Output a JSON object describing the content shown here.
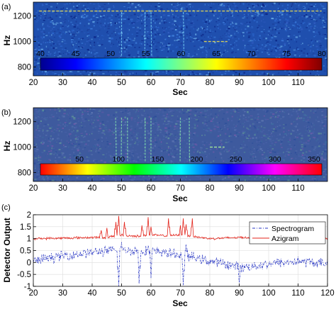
{
  "figure": {
    "panels": [
      "(a)",
      "(b)",
      "(c)"
    ]
  },
  "chart_data": [
    {
      "type": "heatmap",
      "panel_label": "(a)",
      "xlabel": "Sec",
      "ylabel": "Hz",
      "xlim": [
        20,
        120
      ],
      "ylim": [
        730,
        1310
      ],
      "x_ticks": [
        20,
        30,
        40,
        50,
        60,
        70,
        80,
        90,
        100,
        110
      ],
      "y_ticks": [
        800,
        1000,
        1200
      ],
      "colorbar": {
        "colormap": "jet",
        "range": [
          40,
          80
        ],
        "ticks": [
          40,
          45,
          50,
          55,
          60,
          65,
          70,
          75,
          80
        ],
        "tick_color": "#f2e23c"
      },
      "background_color": "#1f4fae",
      "vertical_features_sec": [
        50,
        58,
        60,
        71
      ],
      "horizontal_features": [
        {
          "hz": 1240,
          "from_sec": 22,
          "to_sec": 118
        },
        {
          "hz": 1000,
          "from_sec": 78,
          "to_sec": 86
        }
      ]
    },
    {
      "type": "heatmap",
      "panel_label": "(b)",
      "xlabel": "Sec",
      "ylabel": "Hz",
      "xlim": [
        20,
        120
      ],
      "ylim": [
        730,
        1310
      ],
      "x_ticks": [
        20,
        30,
        40,
        50,
        60,
        70,
        80,
        90,
        100,
        110
      ],
      "y_ticks": [
        800,
        1000,
        1200
      ],
      "colorbar": {
        "colormap": "hsv",
        "range": [
          0,
          360
        ],
        "ticks": [
          50,
          100,
          150,
          200,
          250,
          300,
          350
        ],
        "tick_color": "#000000"
      },
      "background_color": "#3e5a9e",
      "vertical_features_sec": [
        48,
        50,
        52,
        58,
        60,
        70,
        73
      ],
      "horizontal_features": [
        {
          "hz": 1000,
          "from_sec": 80,
          "to_sec": 85
        }
      ]
    },
    {
      "type": "line",
      "panel_label": "(c)",
      "xlabel": "Sec",
      "ylabel": "Detector Output",
      "xlim": [
        20,
        120
      ],
      "ylim": [
        -1,
        2
      ],
      "x_ticks": [
        20,
        30,
        40,
        50,
        60,
        70,
        80,
        90,
        100,
        110,
        120
      ],
      "y_ticks": [
        -1,
        -0.5,
        0,
        0.5,
        1,
        1.5,
        2
      ],
      "y_tick_labels": [
        "-1",
        "-0.5",
        "0",
        "0.5",
        "1",
        "1.5",
        "2"
      ],
      "legend_position": "top-right",
      "series": [
        {
          "name": "Spectrogram",
          "color": "#2b39c4",
          "style": "dash-dot",
          "baseline": [
            [
              20,
              0.05
            ],
            [
              28,
              0.25
            ],
            [
              35,
              0.35
            ],
            [
              42,
              0.45
            ],
            [
              48,
              0.5
            ],
            [
              55,
              0.5
            ],
            [
              62,
              0.45
            ],
            [
              68,
              0.35
            ],
            [
              75,
              0.2
            ],
            [
              80,
              0.05
            ],
            [
              85,
              -0.05
            ],
            [
              90,
              -0.2
            ],
            [
              95,
              -0.15
            ],
            [
              100,
              -0.05
            ],
            [
              105,
              0.0
            ],
            [
              110,
              0.05
            ],
            [
              115,
              0.0
            ],
            [
              120,
              -0.05
            ]
          ],
          "noise_amplitude": 0.25,
          "spikes": [
            [
              49,
              -1.0
            ],
            [
              50,
              0.85
            ],
            [
              56,
              -0.9
            ],
            [
              59,
              0.7
            ],
            [
              60,
              -0.65
            ],
            [
              65,
              0.55
            ],
            [
              71,
              -0.95
            ],
            [
              72,
              0.75
            ],
            [
              90,
              -0.85
            ]
          ]
        },
        {
          "name": "Azigram",
          "color": "#e3241b",
          "style": "solid",
          "baseline": [
            [
              20,
              1.0
            ],
            [
              30,
              1.02
            ],
            [
              40,
              1.05
            ],
            [
              45,
              1.05
            ],
            [
              50,
              1.15
            ],
            [
              55,
              1.1
            ],
            [
              60,
              1.15
            ],
            [
              65,
              1.12
            ],
            [
              70,
              1.15
            ],
            [
              75,
              1.08
            ],
            [
              80,
              1.0
            ],
            [
              90,
              1.05
            ],
            [
              100,
              1.05
            ],
            [
              110,
              1.05
            ],
            [
              120,
              1.0
            ]
          ],
          "noise_amplitude": 0.06,
          "spikes": [
            [
              48,
              1.7
            ],
            [
              49,
              1.95
            ],
            [
              51,
              1.7
            ],
            [
              57,
              1.55
            ],
            [
              59,
              1.9
            ],
            [
              60,
              1.5
            ],
            [
              66,
              1.85
            ],
            [
              70,
              1.55
            ],
            [
              71,
              1.85
            ],
            [
              72,
              1.6
            ],
            [
              74,
              1.85
            ],
            [
              45,
              1.45
            ],
            [
              43,
              1.35
            ],
            [
              104,
              1.3
            ],
            [
              112,
              1.4
            ]
          ]
        }
      ]
    }
  ]
}
